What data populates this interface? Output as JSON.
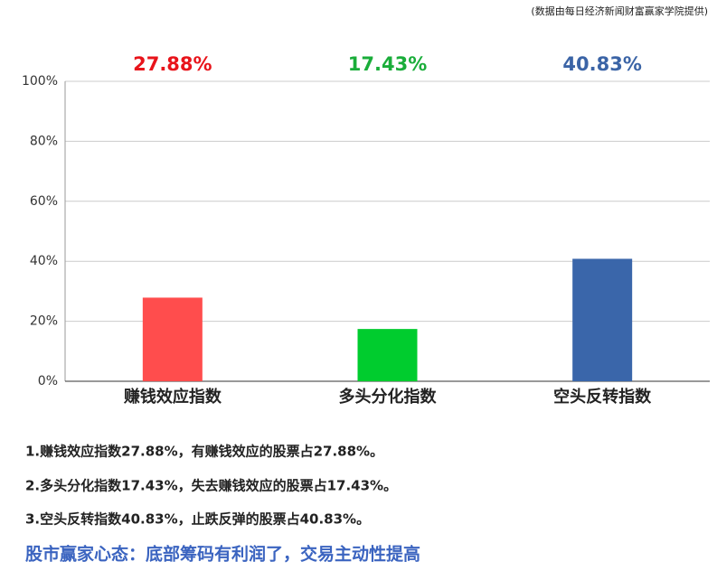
{
  "source": "(数据由每日经济新闻财富赢家学院提供)",
  "chart_data": {
    "type": "bar",
    "categories": [
      "赚钱效应指数",
      "多头分化指数",
      "空头反转指数"
    ],
    "values": [
      27.88,
      17.43,
      40.83
    ],
    "value_labels": [
      "27.88%",
      "17.43%",
      "40.83%"
    ],
    "colors": [
      "#ff4d4d",
      "#00cc2e",
      "#3a66aa"
    ],
    "label_colors": [
      "#e8141b",
      "#1aad3a",
      "#3b64a6"
    ],
    "ylim": [
      0,
      100
    ],
    "yticks": [
      {
        "value": 0,
        "label": "0%"
      },
      {
        "value": 20,
        "label": "20%"
      },
      {
        "value": 40,
        "label": "40%"
      },
      {
        "value": 60,
        "label": "60%"
      },
      {
        "value": 80,
        "label": "80%"
      },
      {
        "value": 100,
        "label": "100%"
      }
    ],
    "grid": true
  },
  "notes": [
    "1.赚钱效应指数27.88%，有赚钱效应的股票占27.88%。",
    "2.多头分化指数17.43%，失去赚钱效应的股票占17.43%。",
    "3.空头反转指数40.83%，止跌反弹的股票占40.83%。"
  ],
  "headline": "股市赢家心态：底部筹码有利润了，交易主动性提高"
}
